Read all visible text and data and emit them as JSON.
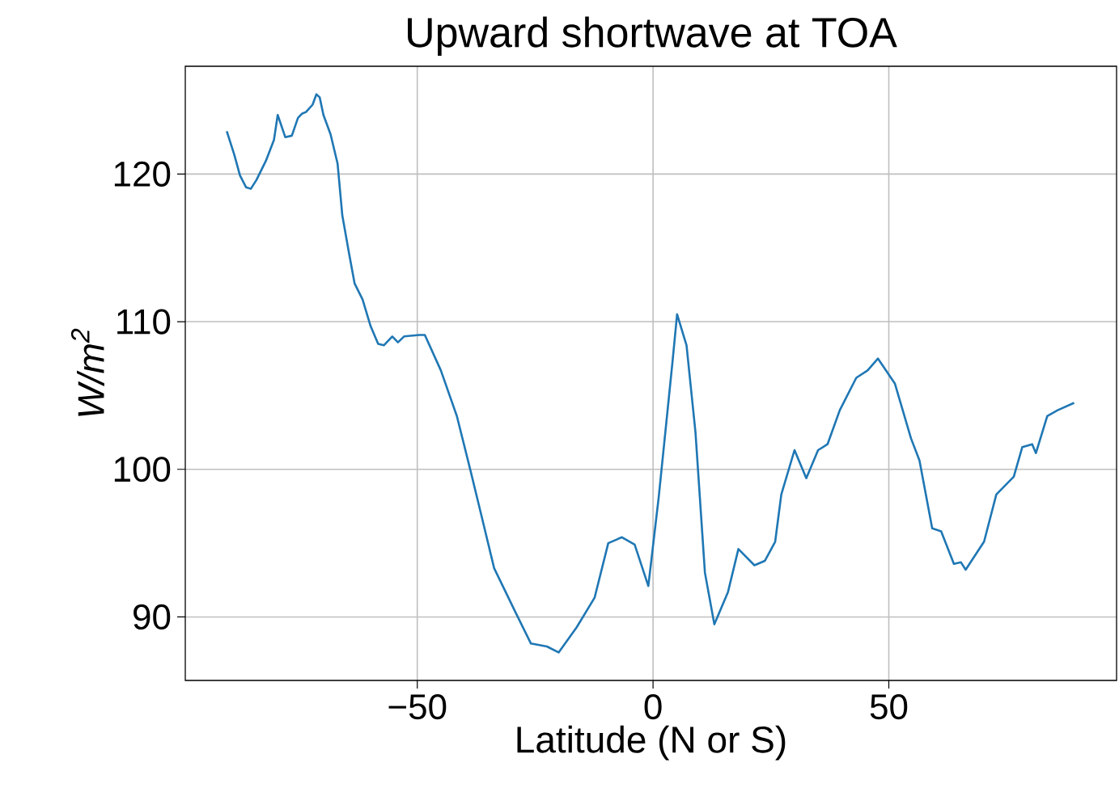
{
  "chart_data": {
    "type": "line",
    "title": "Upward shortwave at TOA",
    "xlabel": "Latitude (N or S)",
    "ylabel": "W/m$^{2}$",
    "xlim": [
      -99.2,
      98.3
    ],
    "ylim": [
      85.7,
      127.3
    ],
    "xticks": [
      {
        "value": -50,
        "label": "−50"
      },
      0,
      50
    ],
    "yticks": [
      90,
      100,
      110,
      120
    ],
    "grid": true,
    "series": [
      {
        "color": "#1f77b4",
        "x": [
          -90.4,
          -88.8,
          -87.6,
          -86.3,
          -85.3,
          -84.1,
          -82.1,
          -80.4,
          -79.6,
          -78.0,
          -76.6,
          -75.3,
          -74.4,
          -73.6,
          -72.2,
          -71.4,
          -70.7,
          -69.9,
          -68.4,
          -66.9,
          -65.9,
          -64.4,
          -63.3,
          -61.6,
          -59.9,
          -58.3,
          -57.1,
          -55.3,
          -54.1,
          -52.8,
          -49.6,
          -48.4,
          -45.0,
          -41.6,
          -38.7,
          -36.5,
          -33.7,
          -29.3,
          -25.9,
          -22.5,
          -20.0,
          -16.2,
          -12.4,
          -9.5,
          -6.6,
          -3.9,
          -1.0,
          1.2,
          4.1,
          5.1,
          7.1,
          9.0,
          11.0,
          13.0,
          15.9,
          18.1,
          21.5,
          23.7,
          25.9,
          27.2,
          30.0,
          32.5,
          35.0,
          37.0,
          39.6,
          43.1,
          45.5,
          47.7,
          51.3,
          54.7,
          56.5,
          59.2,
          61.1,
          63.8,
          65.3,
          66.3,
          70.2,
          72.8,
          76.5,
          78.3,
          80.4,
          81.2,
          83.6,
          85.8,
          89.3
        ],
        "values": [
          122.9,
          121.3,
          119.9,
          119.1,
          119.0,
          119.6,
          120.9,
          122.3,
          124.0,
          122.5,
          122.6,
          123.8,
          124.1,
          124.2,
          124.7,
          125.4,
          125.2,
          124.0,
          122.7,
          120.7,
          117.2,
          114.5,
          112.6,
          111.5,
          109.7,
          108.5,
          108.4,
          109.0,
          108.6,
          109.0,
          109.1,
          109.1,
          106.7,
          103.6,
          99.9,
          97.0,
          93.3,
          90.4,
          88.2,
          88.0,
          87.6,
          89.3,
          91.3,
          95.0,
          95.4,
          94.9,
          92.1,
          98.1,
          107.2,
          110.5,
          108.4,
          102.5,
          93.0,
          89.5,
          91.7,
          94.6,
          93.5,
          93.8,
          95.1,
          98.3,
          101.3,
          99.4,
          101.3,
          101.7,
          104.0,
          106.2,
          106.7,
          107.5,
          105.8,
          102.1,
          100.6,
          96.0,
          95.8,
          93.6,
          93.7,
          93.2,
          95.1,
          98.3,
          99.5,
          101.5,
          101.7,
          101.1,
          103.6,
          104.0,
          104.5
        ]
      }
    ],
    "marker": "none",
    "line_style": "solid"
  }
}
